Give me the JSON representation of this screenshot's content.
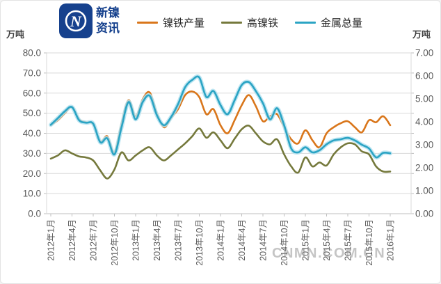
{
  "header": {
    "brand_line1": "新镍",
    "brand_line2": "资讯",
    "unit_left": "万吨",
    "unit_right": "万吨",
    "logo_letter": "N",
    "logo_color": "#16418d"
  },
  "legend": [
    {
      "label": "镍铁产量",
      "color": "#d9761b"
    },
    {
      "label": "高镍铁",
      "color": "#75793c"
    },
    {
      "label": "金属总量",
      "color": "#2ba4c4"
    }
  ],
  "watermark": "CNMN.COM.CN",
  "chart_data": {
    "type": "line",
    "title": "",
    "xlabel": "",
    "x_start": "2012年1月",
    "x_end": "2016年1月",
    "x_points": 49,
    "x_tick_every_months": 3,
    "x_tick_labels": [
      "2012年1月",
      "2012年4月",
      "2012年7月",
      "2012年10月",
      "2013年1月",
      "2013年4月",
      "2013年7月",
      "2013年10月",
      "2014年1月",
      "2014年4月",
      "2014年7月",
      "2014年10月",
      "2015年1月",
      "2015年4月",
      "2015年7月",
      "2015年10月",
      "2016年1月"
    ],
    "grid": true,
    "legend_position": "top",
    "y_left": {
      "unit": "万吨",
      "min": 0,
      "max": 80,
      "tick_labels": [
        "0.0",
        "10.0",
        "20.0",
        "30.0",
        "40.0",
        "50.0",
        "60.0",
        "70.0",
        "80.0"
      ]
    },
    "y_right": {
      "unit": "万吨",
      "min": 0,
      "max": 7,
      "tick_labels": [
        "0.00",
        "1.00",
        "2.00",
        "3.00",
        "4.00",
        "5.00",
        "6.00",
        "7.00"
      ]
    },
    "series": [
      {
        "name": "镍铁产量",
        "axis": "left",
        "color": "#d9761b",
        "values": [
          44,
          46.5,
          50,
          53,
          47,
          45.5,
          44.5,
          36,
          38.5,
          30.5,
          45,
          56.5,
          48.5,
          57,
          60.3,
          50,
          43,
          47.5,
          52,
          59,
          60.8,
          58,
          49.5,
          52,
          44,
          40,
          46.5,
          54,
          59,
          53.5,
          46,
          48.5,
          49.5,
          43,
          37,
          35,
          41.5,
          36.5,
          33,
          40,
          43,
          45,
          46,
          43,
          40.5,
          46.5,
          45.5,
          48.5,
          44
        ]
      },
      {
        "name": "高镍铁",
        "axis": "left",
        "color": "#75793c",
        "values": [
          27.4,
          29,
          31.5,
          30,
          28.5,
          28,
          26.5,
          21.5,
          17.5,
          22,
          30.5,
          26.5,
          29,
          31.5,
          33,
          29,
          26.5,
          29,
          32,
          35,
          38.5,
          42.4,
          37.8,
          40.5,
          36.5,
          32.6,
          37.3,
          42,
          43.8,
          40,
          36,
          34.5,
          37,
          29.5,
          23.5,
          20.5,
          28,
          23.5,
          25.5,
          24,
          29.5,
          33,
          35,
          34.5,
          31,
          29.5,
          23.5,
          21,
          21
        ]
      },
      {
        "name": "金属总量",
        "axis": "right",
        "color": "#2ba4c4",
        "halo": "#b5e2f0",
        "values": [
          3.87,
          4.16,
          4.46,
          4.64,
          4.07,
          3.96,
          3.92,
          3.11,
          3.28,
          2.58,
          3.76,
          4.86,
          4.11,
          4.86,
          5.13,
          4.29,
          3.85,
          4.2,
          4.77,
          5.51,
          5.82,
          5.93,
          5.08,
          5.34,
          4.73,
          4.33,
          4.94,
          5.6,
          5.73,
          5.34,
          4.81,
          4.11,
          4.59,
          3.85,
          2.84,
          2.67,
          2.89,
          2.67,
          2.76,
          3.02,
          3.19,
          3.24,
          3.3,
          3.19,
          3.0,
          2.84,
          2.45,
          2.65,
          2.63
        ]
      }
    ]
  }
}
